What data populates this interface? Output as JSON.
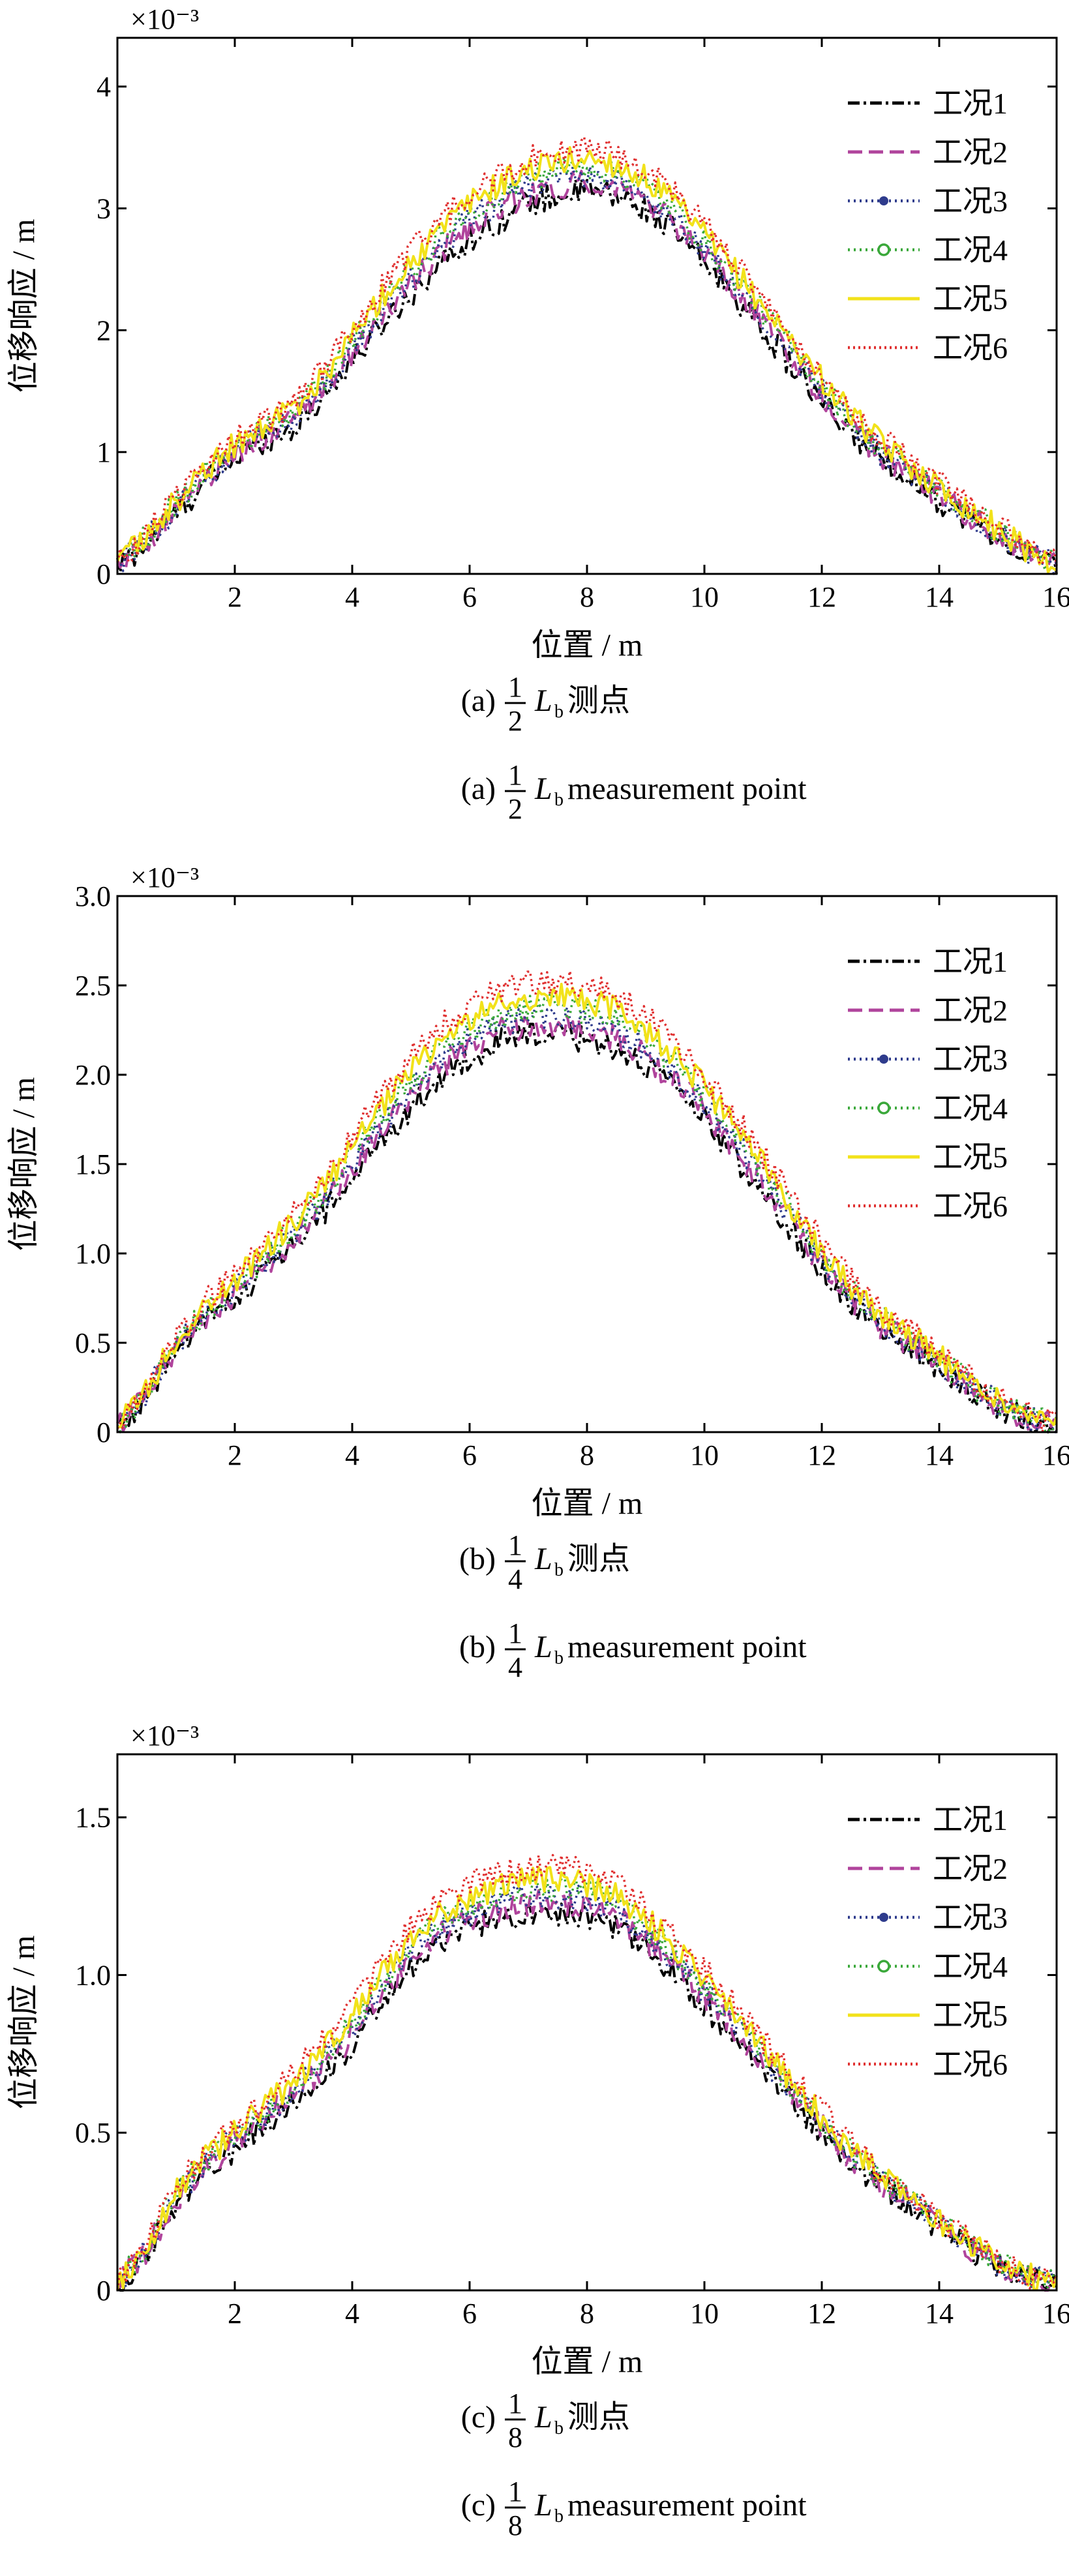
{
  "x_axis_label": "位置 / m",
  "y_axis_label": "位移响应 / m",
  "exponent": "×10⁻³",
  "legend": [
    "工况1",
    "工况2",
    "工况3",
    "工况4",
    "工况5",
    "工况6"
  ],
  "colors": {
    "工况1": "#000000",
    "工况2": "#b0449c",
    "工况3": "#2e3b8c",
    "工况4": "#3aa83a",
    "工况5": "#f2e21a",
    "工况6": "#e03030"
  },
  "panels": [
    {
      "caption_cn": {
        "prefix": "(a)",
        "num": "1",
        "den": "2",
        "var": "L",
        "sub": "b",
        "suffix": "测点"
      },
      "caption_en": {
        "prefix": "(a)",
        "num": "1",
        "den": "2",
        "var": "L",
        "sub": "b",
        "suffix": "measurement point"
      }
    },
    {
      "caption_cn": {
        "prefix": "(b)",
        "num": "1",
        "den": "4",
        "var": "L",
        "sub": "b",
        "suffix": "测点"
      },
      "caption_en": {
        "prefix": "(b)",
        "num": "1",
        "den": "4",
        "var": "L",
        "sub": "b",
        "suffix": "measurement point"
      }
    },
    {
      "caption_cn": {
        "prefix": "(c)",
        "num": "1",
        "den": "8",
        "var": "L",
        "sub": "b",
        "suffix": "测点"
      },
      "caption_en": {
        "prefix": "(c)",
        "num": "1",
        "den": "8",
        "var": "L",
        "sub": "b",
        "suffix": "measurement point"
      }
    }
  ],
  "chart_data": [
    {
      "type": "line",
      "xlim": [
        0,
        16
      ],
      "ylim": [
        0,
        4.4
      ],
      "xticks": [
        2,
        4,
        6,
        8,
        10,
        12,
        14,
        16
      ],
      "yticks": [
        0,
        1,
        2,
        3,
        4
      ],
      "ytick_labels": [
        "0",
        "1",
        "2",
        "3",
        "4"
      ],
      "x": [
        0,
        0.5,
        1,
        1.5,
        2,
        2.5,
        3,
        3.5,
        4,
        4.5,
        5,
        5.5,
        6,
        6.5,
        7,
        7.5,
        8,
        8.5,
        9,
        9.5,
        10,
        10.5,
        11,
        11.5,
        12,
        12.5,
        13,
        13.5,
        14,
        14.5,
        15,
        15.5,
        16
      ],
      "series": [
        {
          "name": "工况1",
          "values": [
            0.05,
            0.25,
            0.5,
            0.75,
            0.95,
            1.1,
            1.2,
            1.45,
            1.75,
            2.05,
            2.3,
            2.55,
            2.75,
            2.9,
            3.05,
            3.1,
            3.15,
            3.1,
            3.0,
            2.8,
            2.55,
            2.3,
            2.0,
            1.7,
            1.4,
            1.15,
            0.95,
            0.8,
            0.6,
            0.45,
            0.3,
            0.15,
            0.05
          ]
        },
        {
          "name": "工况2",
          "values": [
            0.06,
            0.27,
            0.53,
            0.78,
            0.98,
            1.13,
            1.25,
            1.5,
            1.8,
            2.1,
            2.38,
            2.62,
            2.85,
            3.0,
            3.12,
            3.18,
            3.22,
            3.17,
            3.06,
            2.86,
            2.62,
            2.36,
            2.06,
            1.76,
            1.46,
            1.2,
            0.98,
            0.83,
            0.64,
            0.48,
            0.32,
            0.17,
            0.06
          ]
        },
        {
          "name": "工况3",
          "values": [
            0.07,
            0.28,
            0.55,
            0.8,
            1.0,
            1.15,
            1.28,
            1.53,
            1.85,
            2.15,
            2.42,
            2.68,
            2.9,
            3.05,
            3.18,
            3.25,
            3.28,
            3.22,
            3.1,
            2.9,
            2.66,
            2.4,
            2.1,
            1.8,
            1.5,
            1.23,
            1.0,
            0.85,
            0.66,
            0.5,
            0.34,
            0.18,
            0.07
          ]
        },
        {
          "name": "工况4",
          "values": [
            0.08,
            0.3,
            0.58,
            0.82,
            1.03,
            1.18,
            1.32,
            1.58,
            1.9,
            2.22,
            2.5,
            2.75,
            2.98,
            3.12,
            3.25,
            3.32,
            3.35,
            3.3,
            3.18,
            2.98,
            2.72,
            2.45,
            2.15,
            1.85,
            1.55,
            1.27,
            1.04,
            0.88,
            0.69,
            0.52,
            0.36,
            0.19,
            0.08
          ]
        },
        {
          "name": "工况5",
          "values": [
            0.08,
            0.31,
            0.6,
            0.85,
            1.06,
            1.22,
            1.36,
            1.62,
            1.95,
            2.28,
            2.56,
            2.82,
            3.05,
            3.2,
            3.32,
            3.38,
            3.42,
            3.36,
            3.24,
            3.04,
            2.78,
            2.5,
            2.2,
            1.9,
            1.6,
            1.31,
            1.07,
            0.9,
            0.71,
            0.54,
            0.37,
            0.2,
            0.08
          ]
        },
        {
          "name": "工况6",
          "values": [
            0.09,
            0.33,
            0.63,
            0.88,
            1.1,
            1.26,
            1.4,
            1.68,
            2.02,
            2.35,
            2.64,
            2.9,
            3.12,
            3.28,
            3.4,
            3.46,
            3.5,
            3.44,
            3.32,
            3.12,
            2.86,
            2.58,
            2.27,
            1.96,
            1.65,
            1.36,
            1.11,
            0.94,
            0.75,
            0.57,
            0.4,
            0.22,
            0.09
          ]
        }
      ]
    },
    {
      "type": "line",
      "xlim": [
        0,
        16
      ],
      "ylim": [
        0,
        3.0
      ],
      "xticks": [
        2,
        4,
        6,
        8,
        10,
        12,
        14,
        16
      ],
      "yticks": [
        0,
        0.5,
        1.0,
        1.5,
        2.0,
        2.5,
        3.0
      ],
      "ytick_labels": [
        "0",
        "0.5",
        "1.0",
        "1.5",
        "2.0",
        "2.5",
        "3.0"
      ],
      "x": [
        0,
        0.5,
        1,
        1.5,
        2,
        2.5,
        3,
        3.5,
        4,
        4.5,
        5,
        5.5,
        6,
        6.5,
        7,
        7.5,
        8,
        8.5,
        9,
        9.5,
        10,
        10.5,
        11,
        11.5,
        12,
        12.5,
        13,
        13.5,
        14,
        14.5,
        15,
        15.5,
        16
      ],
      "series": [
        {
          "name": "工况1",
          "values": [
            0.02,
            0.2,
            0.45,
            0.62,
            0.75,
            0.9,
            1.05,
            1.22,
            1.42,
            1.62,
            1.82,
            1.98,
            2.1,
            2.18,
            2.22,
            2.22,
            2.2,
            2.15,
            2.05,
            1.92,
            1.75,
            1.55,
            1.35,
            1.12,
            0.9,
            0.72,
            0.58,
            0.48,
            0.36,
            0.24,
            0.14,
            0.07,
            0.03
          ]
        },
        {
          "name": "工况2",
          "values": [
            0.03,
            0.21,
            0.47,
            0.64,
            0.78,
            0.93,
            1.08,
            1.26,
            1.47,
            1.67,
            1.88,
            2.04,
            2.16,
            2.24,
            2.28,
            2.28,
            2.26,
            2.2,
            2.1,
            1.97,
            1.8,
            1.6,
            1.39,
            1.16,
            0.94,
            0.75,
            0.6,
            0.5,
            0.38,
            0.26,
            0.15,
            0.08,
            0.03
          ]
        },
        {
          "name": "工况3",
          "values": [
            0.03,
            0.22,
            0.48,
            0.66,
            0.8,
            0.95,
            1.11,
            1.29,
            1.5,
            1.71,
            1.92,
            2.08,
            2.2,
            2.28,
            2.32,
            2.33,
            2.31,
            2.25,
            2.15,
            2.01,
            1.84,
            1.64,
            1.42,
            1.19,
            0.96,
            0.77,
            0.62,
            0.51,
            0.39,
            0.27,
            0.16,
            0.08,
            0.04
          ]
        },
        {
          "name": "工况4",
          "values": [
            0.03,
            0.23,
            0.5,
            0.68,
            0.82,
            0.98,
            1.14,
            1.33,
            1.55,
            1.76,
            1.97,
            2.13,
            2.25,
            2.33,
            2.37,
            2.38,
            2.36,
            2.3,
            2.2,
            2.06,
            1.88,
            1.68,
            1.46,
            1.22,
            0.99,
            0.79,
            0.64,
            0.53,
            0.4,
            0.28,
            0.17,
            0.09,
            0.04
          ]
        },
        {
          "name": "工况5",
          "values": [
            0.04,
            0.24,
            0.52,
            0.7,
            0.85,
            1.01,
            1.18,
            1.37,
            1.59,
            1.81,
            2.02,
            2.19,
            2.31,
            2.39,
            2.43,
            2.44,
            2.42,
            2.36,
            2.26,
            2.11,
            1.93,
            1.72,
            1.5,
            1.26,
            1.02,
            0.82,
            0.66,
            0.55,
            0.42,
            0.29,
            0.18,
            0.09,
            0.04
          ]
        },
        {
          "name": "工况6",
          "values": [
            0.04,
            0.25,
            0.54,
            0.73,
            0.88,
            1.05,
            1.22,
            1.42,
            1.65,
            1.88,
            2.1,
            2.27,
            2.39,
            2.47,
            2.51,
            2.52,
            2.5,
            2.44,
            2.33,
            2.18,
            1.99,
            1.78,
            1.55,
            1.3,
            1.06,
            0.85,
            0.69,
            0.57,
            0.44,
            0.31,
            0.19,
            0.1,
            0.05
          ]
        }
      ]
    },
    {
      "type": "line",
      "xlim": [
        0,
        16
      ],
      "ylim": [
        0,
        1.7
      ],
      "xticks": [
        2,
        4,
        6,
        8,
        10,
        12,
        14,
        16
      ],
      "yticks": [
        0,
        0.5,
        1.0,
        1.5
      ],
      "ytick_labels": [
        "0",
        "0.5",
        "1.0",
        "1.5"
      ],
      "x": [
        0,
        0.5,
        1,
        1.5,
        2,
        2.5,
        3,
        3.5,
        4,
        4.5,
        5,
        5.5,
        6,
        6.5,
        7,
        7.5,
        8,
        8.5,
        9,
        9.5,
        10,
        10.5,
        11,
        11.5,
        12,
        12.5,
        13,
        13.5,
        14,
        14.5,
        15,
        15.5,
        16
      ],
      "series": [
        {
          "name": "工况1",
          "values": [
            0.01,
            0.12,
            0.28,
            0.38,
            0.45,
            0.52,
            0.6,
            0.68,
            0.78,
            0.9,
            1.02,
            1.1,
            1.15,
            1.18,
            1.2,
            1.2,
            1.19,
            1.15,
            1.08,
            1.0,
            0.9,
            0.8,
            0.7,
            0.6,
            0.5,
            0.41,
            0.33,
            0.27,
            0.2,
            0.13,
            0.08,
            0.04,
            0.01
          ]
        },
        {
          "name": "工况2",
          "values": [
            0.01,
            0.13,
            0.29,
            0.39,
            0.47,
            0.54,
            0.62,
            0.7,
            0.81,
            0.93,
            1.05,
            1.13,
            1.18,
            1.21,
            1.23,
            1.23,
            1.22,
            1.18,
            1.11,
            1.03,
            0.93,
            0.83,
            0.72,
            0.62,
            0.52,
            0.42,
            0.34,
            0.28,
            0.21,
            0.14,
            0.08,
            0.04,
            0.01
          ]
        },
        {
          "name": "工况3",
          "values": [
            0.02,
            0.13,
            0.3,
            0.4,
            0.48,
            0.55,
            0.63,
            0.72,
            0.83,
            0.95,
            1.07,
            1.15,
            1.2,
            1.23,
            1.25,
            1.25,
            1.24,
            1.2,
            1.13,
            1.05,
            0.95,
            0.85,
            0.74,
            0.63,
            0.53,
            0.43,
            0.35,
            0.29,
            0.21,
            0.14,
            0.09,
            0.04,
            0.02
          ]
        },
        {
          "name": "工况4",
          "values": [
            0.02,
            0.14,
            0.31,
            0.41,
            0.49,
            0.56,
            0.65,
            0.74,
            0.85,
            0.97,
            1.09,
            1.17,
            1.22,
            1.25,
            1.27,
            1.28,
            1.27,
            1.23,
            1.15,
            1.07,
            0.97,
            0.86,
            0.75,
            0.64,
            0.54,
            0.44,
            0.36,
            0.29,
            0.22,
            0.15,
            0.09,
            0.05,
            0.02
          ]
        },
        {
          "name": "工况5",
          "values": [
            0.02,
            0.14,
            0.32,
            0.42,
            0.5,
            0.58,
            0.66,
            0.76,
            0.87,
            1.0,
            1.12,
            1.2,
            1.25,
            1.28,
            1.3,
            1.3,
            1.29,
            1.25,
            1.18,
            1.09,
            0.99,
            0.88,
            0.77,
            0.66,
            0.55,
            0.45,
            0.37,
            0.3,
            0.22,
            0.15,
            0.09,
            0.05,
            0.02
          ]
        },
        {
          "name": "工况6",
          "values": [
            0.02,
            0.15,
            0.33,
            0.44,
            0.52,
            0.6,
            0.69,
            0.79,
            0.9,
            1.03,
            1.15,
            1.24,
            1.29,
            1.32,
            1.34,
            1.34,
            1.33,
            1.29,
            1.21,
            1.12,
            1.02,
            0.91,
            0.79,
            0.68,
            0.57,
            0.47,
            0.38,
            0.31,
            0.23,
            0.16,
            0.1,
            0.05,
            0.02
          ]
        }
      ]
    }
  ]
}
